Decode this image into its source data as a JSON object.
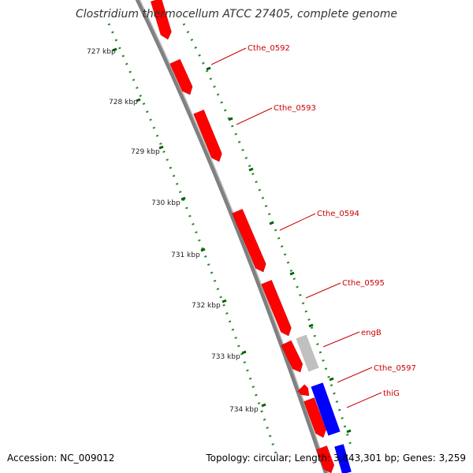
{
  "title": "Clostridium thermocellum ATCC 27405, complete genome",
  "footer": {
    "accession": "Accession: NC_009012",
    "summary": "Topology: circular; Length: 3,843,301 bp; Genes: 3,259"
  },
  "colors": {
    "forward_gene": "#ff0000",
    "reverse_gene": "#0000ff",
    "other_feature": "#c0c0c0",
    "backbone": "#808080",
    "tick": "#006400",
    "gene_label": "#cc0000"
  },
  "ticks": [
    {
      "label": "727 kbp"
    },
    {
      "label": "728 kbp"
    },
    {
      "label": "729 kbp"
    },
    {
      "label": "730 kbp"
    },
    {
      "label": "731 kbp"
    },
    {
      "label": "732 kbp"
    },
    {
      "label": "733 kbp"
    },
    {
      "label": "734 kbp"
    }
  ],
  "genes": [
    {
      "label": "Cthe_0592",
      "strand": "forward"
    },
    {
      "label": "Cthe_0593",
      "strand": "forward"
    },
    {
      "label": "Cthe_0594",
      "strand": "forward"
    },
    {
      "label": "Cthe_0595",
      "strand": "forward"
    },
    {
      "label": "engB",
      "strand": "forward"
    },
    {
      "label": "Cthe_0597",
      "strand": "forward"
    },
    {
      "label": "thiG",
      "strand": "reverse"
    }
  ]
}
